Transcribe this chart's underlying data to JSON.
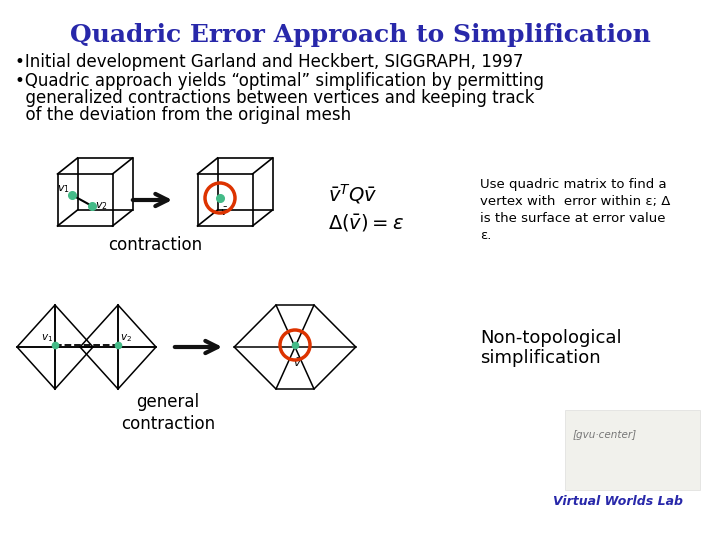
{
  "title": "Quadric Error Approach to Simplification",
  "title_color": "#2828AA",
  "title_fontsize": 18,
  "bg_color": "#FFFFFF",
  "bullet1": "•Initial development Garland and Heckbert, SIGGRAPH, 1997",
  "bullet2_line1": "•Quadric approach yields “optimal” simplification by permitting",
  "bullet2_line2": "  generalized contractions between vertices and keeping track",
  "bullet2_line3": "  of the deviation from the original mesh",
  "body_fontsize": 12,
  "body_color": "#000000",
  "label_contraction": "contraction",
  "label_general": "general\ncontraction",
  "label_formula1a": "$\\bar{v}^T Q\\bar{v}$",
  "label_formula1b": "$\\Delta(\\bar{v}) = \\varepsilon$",
  "label_desc": "Use quadric matrix to find a\nvertex with  error within ε; Δ\nis the surface at error value\nε.",
  "label_nontopo_1": "Non-topological",
  "label_nontopo_2": "simplification",
  "label_vwlab": "Virtual Worlds Lab",
  "label_gvu": "[gvu·center]",
  "arrow_color": "#111111",
  "mesh_color": "#000000",
  "node_color": "#44BB88",
  "circle_color": "#DD3300"
}
